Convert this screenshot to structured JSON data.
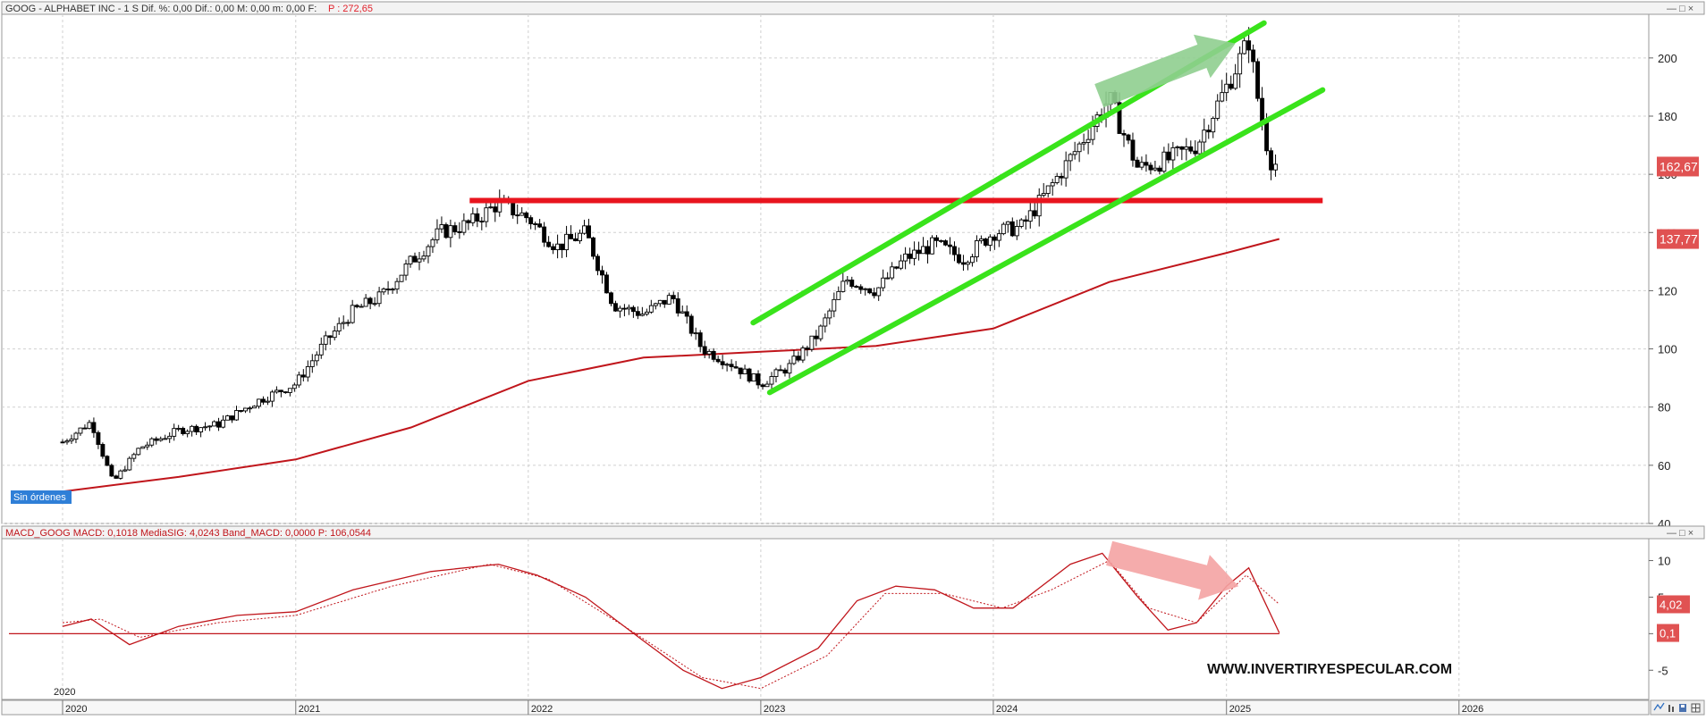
{
  "price_panel": {
    "header": "GOOG - ALPHABET INC - 1 S  Dif. %: 0,00  Dif.: 0,00  M: 0,00  m: 0,00  F:",
    "header_value": "P : 272,65",
    "status_badge": "Sin órdenes",
    "last_price_label": "162,67",
    "ma_label": "137,77",
    "controls": "— □ ×"
  },
  "macd_panel": {
    "header": "MACD_GOOG  MACD: 0,1018  MediaSIG: 4,0243  Band_MACD: 0,0000  P: 106,0544",
    "signal_label": "4,02",
    "macd_label": "0,1",
    "controls": "— □ ×"
  },
  "watermark": "WWW.INVERTIRYESPECULAR.COM",
  "year_marker": "2020",
  "colors": {
    "candle": "#000000",
    "moving_average": "#c0151b",
    "support_line": "#e8141e",
    "channel": "#39e31b",
    "up_arrow": "#8fce8f",
    "down_arrow": "#f4a3a3",
    "value_badge": "#e05252",
    "status_badge": "#2f7fd7"
  },
  "bottom_toolbar_icons": [
    "chart-style-icon",
    "bar-chart-icon",
    "save-icon",
    "grid-icon"
  ],
  "chart_data": [
    {
      "type": "candlestick",
      "title": "GOOG - ALPHABET INC - 1 S",
      "x_axis": {
        "type": "date",
        "labels": [
          "2020",
          "2021",
          "2022",
          "2023",
          "2024",
          "2025",
          "2026"
        ],
        "range": [
          "2020-01-01",
          "2026-06-30"
        ]
      },
      "y_axis": {
        "ticks": [
          40,
          60,
          80,
          100,
          120,
          140,
          160,
          180,
          200
        ],
        "range": [
          40,
          215
        ],
        "position": "right"
      },
      "grid": true,
      "price_path": [
        [
          "2020-01-01",
          68
        ],
        [
          "2020-02-15",
          75
        ],
        [
          "2020-03-20",
          54
        ],
        [
          "2020-05-01",
          66
        ],
        [
          "2020-07-01",
          72
        ],
        [
          "2020-09-01",
          74
        ],
        [
          "2020-11-01",
          82
        ],
        [
          "2021-01-01",
          88
        ],
        [
          "2021-02-15",
          102
        ],
        [
          "2021-04-01",
          113
        ],
        [
          "2021-05-15",
          118
        ],
        [
          "2021-07-01",
          130
        ],
        [
          "2021-08-15",
          140
        ],
        [
          "2021-10-01",
          143
        ],
        [
          "2021-11-15",
          150
        ],
        [
          "2022-01-01",
          145
        ],
        [
          "2022-02-15",
          135
        ],
        [
          "2022-04-01",
          140
        ],
        [
          "2022-05-15",
          115
        ],
        [
          "2022-07-01",
          112
        ],
        [
          "2022-08-15",
          118
        ],
        [
          "2022-10-01",
          100
        ],
        [
          "2022-11-15",
          95
        ],
        [
          "2023-01-01",
          88
        ],
        [
          "2023-02-15",
          94
        ],
        [
          "2023-04-01",
          105
        ],
        [
          "2023-05-15",
          124
        ],
        [
          "2023-07-01",
          120
        ],
        [
          "2023-08-15",
          131
        ],
        [
          "2023-10-01",
          136
        ],
        [
          "2023-11-15",
          131
        ],
        [
          "2024-01-01",
          140
        ],
        [
          "2024-02-15",
          142
        ],
        [
          "2024-04-01",
          156
        ],
        [
          "2024-05-15",
          170
        ],
        [
          "2024-07-01",
          186
        ],
        [
          "2024-08-15",
          162
        ],
        [
          "2024-10-01",
          165
        ],
        [
          "2024-11-15",
          170
        ],
        [
          "2025-01-01",
          190
        ],
        [
          "2025-02-05",
          206
        ],
        [
          "2025-02-20",
          185
        ],
        [
          "2025-03-10",
          165
        ],
        [
          "2025-03-25",
          162.67
        ]
      ],
      "moving_average": [
        [
          "2020-01-01",
          51
        ],
        [
          "2020-07-01",
          56
        ],
        [
          "2021-01-01",
          62
        ],
        [
          "2021-07-01",
          73
        ],
        [
          "2022-01-01",
          89
        ],
        [
          "2022-07-01",
          97
        ],
        [
          "2023-01-01",
          99
        ],
        [
          "2023-07-01",
          101
        ],
        [
          "2024-01-01",
          107
        ],
        [
          "2024-07-01",
          123
        ],
        [
          "2025-01-01",
          133
        ],
        [
          "2025-03-25",
          137.77
        ]
      ],
      "support_line": {
        "y": 151,
        "from": "2021-10-01",
        "to": "2025-06-01"
      },
      "channel_lines": [
        {
          "from": [
            "2022-12-20",
            109
          ],
          "to": [
            "2025-03-01",
            212
          ]
        },
        {
          "from": [
            "2023-01-15",
            85
          ],
          "to": [
            "2025-06-01",
            189
          ]
        }
      ],
      "annotations": [
        {
          "kind": "arrow-up",
          "from": [
            "2024-06-15",
            187
          ],
          "to": [
            "2025-01-15",
            205
          ]
        },
        {
          "kind": "badge",
          "text": "162,67",
          "y": 162.67
        },
        {
          "kind": "badge",
          "text": "137,77",
          "y": 137.77
        }
      ]
    },
    {
      "type": "line",
      "title": "MACD_GOOG",
      "x_axis": {
        "type": "date",
        "range": [
          "2020-01-01",
          "2026-06-30"
        ]
      },
      "y_axis": {
        "ticks": [
          -5,
          0,
          5,
          10
        ],
        "labels": [
          "-5",
          "",
          "5",
          "10"
        ],
        "range": [
          -9,
          13
        ],
        "position": "right"
      },
      "zero_line": 0,
      "series": [
        {
          "style": "solid",
          "points": [
            [
              "2020-01-01",
              1
            ],
            [
              "2020-02-15",
              2
            ],
            [
              "2020-04-15",
              -1.5
            ],
            [
              "2020-07-01",
              1
            ],
            [
              "2020-10-01",
              2.5
            ],
            [
              "2021-01-01",
              3
            ],
            [
              "2021-04-01",
              6
            ],
            [
              "2021-08-01",
              8.5
            ],
            [
              "2021-11-15",
              9.5
            ],
            [
              "2022-01-15",
              8
            ],
            [
              "2022-04-01",
              5
            ],
            [
              "2022-07-01",
              -1
            ],
            [
              "2022-09-01",
              -5
            ],
            [
              "2022-11-01",
              -7.5
            ],
            [
              "2023-01-01",
              -6
            ],
            [
              "2023-04-01",
              -2
            ],
            [
              "2023-06-01",
              4.5
            ],
            [
              "2023-08-01",
              6.5
            ],
            [
              "2023-10-01",
              6
            ],
            [
              "2023-12-01",
              3.5
            ],
            [
              "2024-02-01",
              3.5
            ],
            [
              "2024-05-01",
              9.5
            ],
            [
              "2024-06-20",
              11
            ],
            [
              "2024-08-15",
              5
            ],
            [
              "2024-10-01",
              0.5
            ],
            [
              "2024-11-15",
              1.5
            ],
            [
              "2025-01-01",
              6.5
            ],
            [
              "2025-02-05",
              9
            ],
            [
              "2025-03-25",
              0.1
            ]
          ]
        },
        {
          "style": "dotted",
          "points": [
            [
              "2020-01-01",
              1.5
            ],
            [
              "2020-03-01",
              2
            ],
            [
              "2020-05-01",
              -0.5
            ],
            [
              "2020-09-01",
              1.5
            ],
            [
              "2021-01-01",
              2.5
            ],
            [
              "2021-06-01",
              6.5
            ],
            [
              "2021-11-01",
              9.5
            ],
            [
              "2022-02-01",
              7.5
            ],
            [
              "2022-06-01",
              1
            ],
            [
              "2022-10-01",
              -6
            ],
            [
              "2023-01-01",
              -7.5
            ],
            [
              "2023-04-15",
              -3
            ],
            [
              "2023-07-15",
              5.5
            ],
            [
              "2023-10-15",
              5.5
            ],
            [
              "2024-01-15",
              3.5
            ],
            [
              "2024-04-01",
              6
            ],
            [
              "2024-07-01",
              10
            ],
            [
              "2024-09-01",
              3.5
            ],
            [
              "2024-11-15",
              1.5
            ],
            [
              "2025-02-01",
              8
            ],
            [
              "2025-03-25",
              4.02
            ]
          ]
        }
      ],
      "annotations": [
        {
          "kind": "arrow-down",
          "from": [
            "2024-07-01",
            11
          ],
          "to": [
            "2025-01-20",
            6.5
          ]
        },
        {
          "kind": "badge",
          "text": "4,02",
          "y": 4.02
        },
        {
          "kind": "badge",
          "text": "0,1",
          "y": 0.1
        }
      ]
    }
  ]
}
